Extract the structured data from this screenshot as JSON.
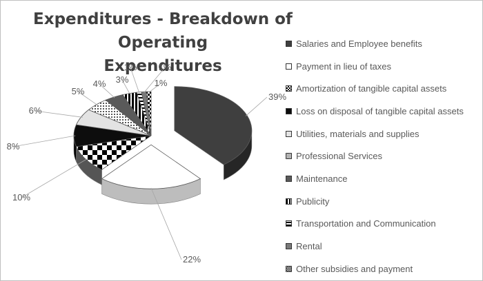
{
  "chart_data": {
    "type": "pie",
    "title_lines": [
      "Expenditures - Breakdown of Operating",
      "Expenditures"
    ],
    "legend_position": "right",
    "labels": [
      "Salaries and Employee benefits",
      "Payment in lieu of taxes",
      "Amortization of tangible capital assets",
      "Loss on disposal of tangible capital assets",
      "Utilities, materials and supplies",
      "Professional Services",
      "Maintenance",
      "Publicity",
      "Transportation and Communication",
      "Rental",
      "Other subsidies and payment"
    ],
    "data_labels": [
      "39%",
      "22%",
      "10%",
      "8%",
      "6%",
      "5%",
      "4%",
      "3%",
      "1%",
      "1%",
      "1%"
    ],
    "values": [
      39,
      22,
      10,
      8,
      6,
      5,
      4,
      3,
      1,
      1,
      1
    ],
    "patterns": [
      "solid-dark",
      "white",
      "checker",
      "solid-black",
      "light-gray",
      "dots",
      "solid-mid",
      "vertical-stripes",
      "horizontal-stripes",
      "solid-gray",
      "checker-small"
    ]
  }
}
